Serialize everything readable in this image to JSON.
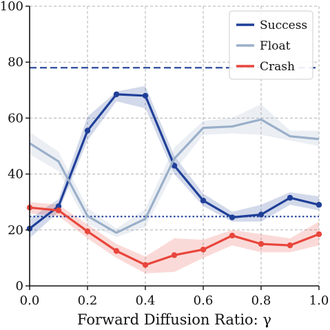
{
  "chart_data": {
    "type": "line",
    "title": "",
    "xlabel": "Forward Diffusion Ratio: γ",
    "ylabel": "",
    "xlim": [
      0.0,
      1.0
    ],
    "ylim": [
      0,
      100
    ],
    "x_ticks": [
      "0.0",
      "0.2",
      "0.4",
      "0.6",
      "0.8",
      "1.0"
    ],
    "y_ticks": [
      "0",
      "20",
      "40",
      "60",
      "80",
      "100"
    ],
    "grid": true,
    "legend_position": "top-right",
    "x": [
      0.0,
      0.1,
      0.2,
      0.3,
      0.4,
      0.5,
      0.6,
      0.7,
      0.8,
      0.9,
      1.0
    ],
    "series": [
      {
        "name": "Success",
        "color": "#1f3f98",
        "values": [
          20.5,
          28.5,
          55.5,
          68.5,
          68.0,
          43.0,
          30.5,
          24.5,
          25.5,
          31.5,
          29.0
        ],
        "lower": [
          17.0,
          26.5,
          52.0,
          66.0,
          63.5,
          40.0,
          28.5,
          23.0,
          23.0,
          29.0,
          27.0
        ],
        "upper": [
          24.0,
          31.0,
          60.5,
          69.5,
          71.5,
          46.5,
          33.0,
          26.5,
          29.0,
          33.5,
          32.0
        ],
        "markers": true
      },
      {
        "name": "Float",
        "color": "#9aafc9",
        "values": [
          51.0,
          44.5,
          25.0,
          19.0,
          24.0,
          45.5,
          56.5,
          57.0,
          59.5,
          53.5,
          52.5
        ],
        "lower": [
          47.0,
          41.0,
          22.0,
          17.5,
          21.0,
          41.0,
          54.0,
          54.5,
          54.0,
          52.0,
          50.0
        ],
        "upper": [
          55.0,
          48.0,
          28.0,
          20.5,
          27.5,
          49.5,
          59.0,
          60.0,
          65.0,
          55.5,
          55.5
        ],
        "markers": false
      },
      {
        "name": "Crash",
        "color": "#e8463c",
        "values": [
          28.0,
          27.0,
          19.5,
          12.5,
          7.5,
          11.0,
          13.0,
          18.0,
          15.0,
          14.5,
          18.5
        ],
        "lower": [
          26.0,
          25.0,
          17.0,
          10.0,
          4.5,
          5.0,
          10.0,
          14.5,
          12.0,
          12.0,
          14.5
        ],
        "upper": [
          30.0,
          29.0,
          22.0,
          15.0,
          10.5,
          17.0,
          16.5,
          20.0,
          18.5,
          17.0,
          23.0
        ],
        "markers": true
      }
    ],
    "reference_lines": [
      {
        "y": 78.0,
        "style": "dashed",
        "color": "#1f3f98"
      },
      {
        "y": 24.8,
        "style": "dotted",
        "color": "#1f3f98"
      }
    ]
  }
}
